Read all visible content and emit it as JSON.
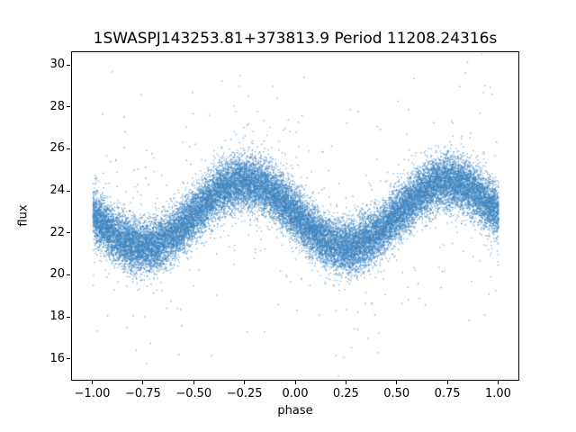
{
  "chart_data": {
    "type": "scatter",
    "title": "1SWASPJ143253.81+373813.9 Period 11208.24316s",
    "xlabel": "phase",
    "ylabel": "flux",
    "xlim": [
      -1.1,
      1.1
    ],
    "ylim": [
      15.0,
      30.6
    ],
    "grid": false,
    "legend": null,
    "xticks": {
      "values": [
        -1.0,
        -0.75,
        -0.5,
        -0.25,
        0.0,
        0.25,
        0.5,
        0.75,
        1.0
      ],
      "labels": [
        "−1.00",
        "−0.75",
        "−0.50",
        "−0.25",
        "0.00",
        "0.25",
        "0.50",
        "0.75",
        "1.00"
      ]
    },
    "yticks": {
      "values": [
        16,
        18,
        20,
        22,
        24,
        26,
        28,
        30
      ],
      "labels": [
        "16",
        "18",
        "20",
        "22",
        "24",
        "26",
        "28",
        "30"
      ]
    },
    "marker": {
      "shape": "pixel",
      "color": "#3d85c0",
      "alpha": 0.7,
      "size": 1.3
    },
    "series_model": {
      "description": "phase-folded sinusoidal light curve scatter, one cycle per unit phase, duplicated over phase -1 to 1",
      "n_points": 28000,
      "mean_flux": 22.9,
      "amplitude": 1.55,
      "peak_phase": -0.25,
      "noise_sigma": 0.62,
      "outlier_fraction": 0.018,
      "outlier_sigma": 2.8,
      "flux_range_observed": [
        15.4,
        29.6
      ],
      "seed": 20240613
    }
  }
}
